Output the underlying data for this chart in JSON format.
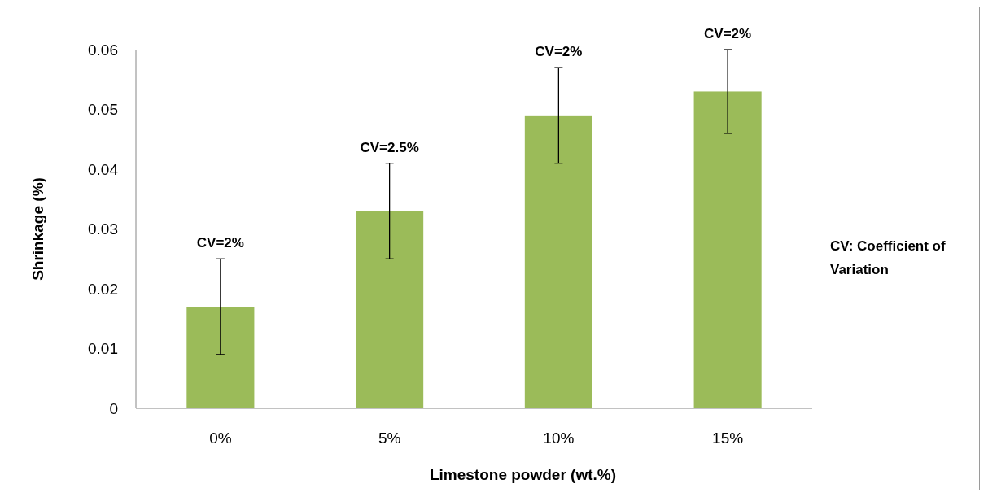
{
  "chart_data": {
    "type": "bar",
    "xlabel": "Limestone powder (wt.%)",
    "ylabel": "Shrinkage (%)",
    "categories": [
      "0%",
      "5%",
      "10%",
      "15%"
    ],
    "values": [
      0.017,
      0.033,
      0.049,
      0.053
    ],
    "errors": [
      0.008,
      0.008,
      0.008,
      0.007
    ],
    "color": "#9bbb59",
    "ylim": [
      0,
      0.06
    ],
    "yticks": [
      {
        "value": 0,
        "label": "0"
      },
      {
        "value": 0.01,
        "label": "0.01"
      },
      {
        "value": 0.02,
        "label": "0.02"
      },
      {
        "value": 0.03,
        "label": "0.03"
      },
      {
        "value": 0.04,
        "label": "0.04"
      },
      {
        "value": 0.05,
        "label": "0.05"
      },
      {
        "value": 0.06,
        "label": "0.06"
      }
    ],
    "grid": false,
    "annotations": [
      {
        "text": "CV=2%",
        "x": "0%",
        "y": 0.025
      },
      {
        "text": "CV=2.5%",
        "x": "5%",
        "y": 0.041
      },
      {
        "text": "CV=2%",
        "x": "10%",
        "y": 0.057
      },
      {
        "text": "CV=2%",
        "x": "15%",
        "y": 0.06
      },
      "CV: Coefficient of Variation"
    ]
  }
}
